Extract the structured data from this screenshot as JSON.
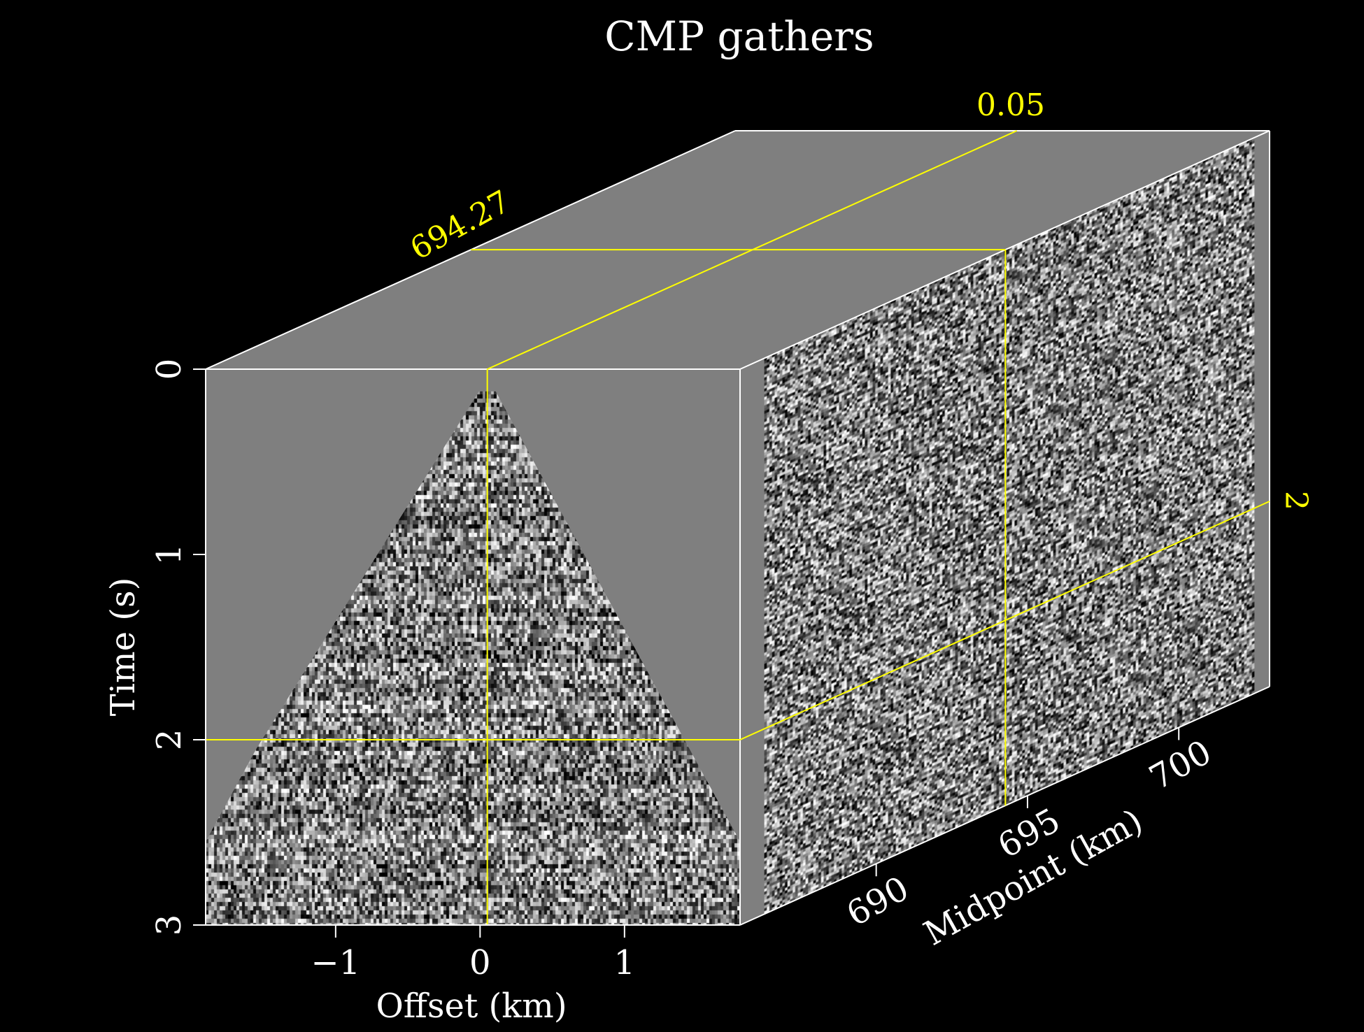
{
  "chart_data": {
    "type": "heatmap",
    "subtype": "3d-cube",
    "title": "CMP gathers",
    "axes": {
      "offset": {
        "label": "Offset (km)",
        "range": [
          -1.9,
          1.8
        ],
        "ticks": [
          -1,
          0,
          1
        ],
        "tick_labels": [
          "−1",
          "0",
          "1"
        ]
      },
      "time": {
        "label": "Time (s)",
        "range": [
          0,
          3
        ],
        "ticks": [
          0,
          1,
          2,
          3
        ],
        "tick_labels": [
          "0",
          "1",
          "2",
          "3"
        ]
      },
      "midpoint": {
        "label": "Midpoint (km)",
        "range": [
          685.5,
          703
        ],
        "ticks": [
          690,
          695,
          700
        ],
        "tick_labels": [
          "690",
          "695",
          "700"
        ]
      }
    },
    "cursor": {
      "offset": 0.05,
      "offset_label": "0.05",
      "time": 2,
      "time_label": "2",
      "midpoint": 694.27,
      "midpoint_label": "694.27"
    },
    "faces": [
      "front: offset vs time",
      "side: midpoint vs time",
      "top: offset vs midpoint"
    ],
    "colors": {
      "background": "#000000",
      "panel": "#7f7f7f",
      "axis": "#ffffff",
      "cursor": "#ffff00"
    },
    "grid": false,
    "legend": "none"
  }
}
